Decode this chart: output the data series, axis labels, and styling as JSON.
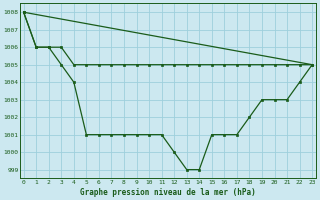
{
  "title": "Graphe pression niveau de la mer (hPa)",
  "background_color": "#cce8f0",
  "grid_color": "#9ecfdc",
  "line_color": "#1a5c1a",
  "ylim": [
    998.5,
    1008.5
  ],
  "xlim": [
    -0.3,
    23.3
  ],
  "yticks": [
    999,
    1000,
    1001,
    1002,
    1003,
    1004,
    1005,
    1006,
    1007,
    1008
  ],
  "xticks": [
    0,
    1,
    2,
    3,
    4,
    5,
    6,
    7,
    8,
    9,
    10,
    11,
    12,
    13,
    14,
    15,
    16,
    17,
    18,
    19,
    20,
    21,
    22,
    23
  ],
  "line1_x": [
    0,
    1,
    2,
    3,
    4,
    5,
    6,
    7,
    8,
    9,
    10,
    11,
    12,
    13,
    14,
    15,
    16,
    17,
    18,
    19,
    20,
    21,
    22,
    23
  ],
  "line1_y": [
    1008,
    1006,
    1006,
    1005,
    1004,
    1001,
    1001,
    1001,
    1001,
    1001,
    1001,
    1001,
    1000,
    999,
    999,
    1001,
    1001,
    1001,
    1002,
    1003,
    1003,
    1003,
    1004,
    1005
  ],
  "line2_x": [
    0,
    1,
    2,
    3,
    4,
    5,
    6,
    7,
    8,
    9,
    10,
    11,
    12,
    13,
    14,
    15,
    16,
    17,
    18,
    19,
    20,
    21,
    22,
    23
  ],
  "line2_y": [
    1008,
    1006,
    1006,
    1006,
    1005,
    1005,
    1005,
    1005,
    1005,
    1005,
    1005,
    1005,
    1005,
    1005,
    1005,
    1005,
    1005,
    1005,
    1005,
    1005,
    1005,
    1005,
    1005,
    1005
  ],
  "line3_x": [
    0,
    23
  ],
  "line3_y": [
    1008,
    1005
  ]
}
